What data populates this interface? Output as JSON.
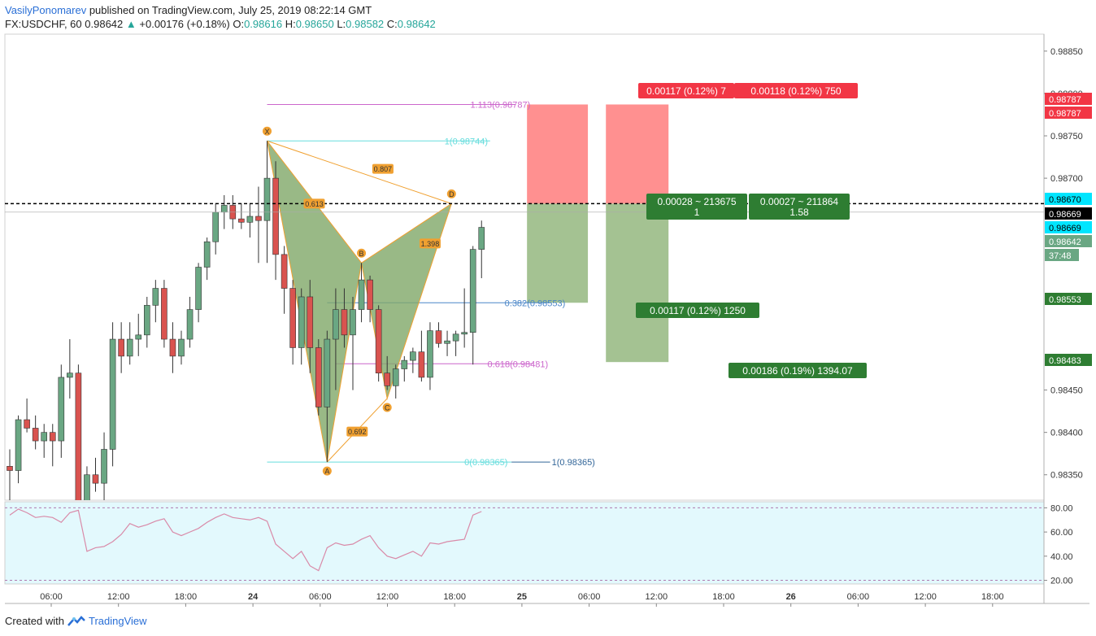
{
  "header": {
    "author": "VasilyPonomarev",
    "published": "published on TradingView.com, July 25, 2019 08:22:14 GMT"
  },
  "symbol_bar": {
    "symbol": "FX:USDCHF, 60",
    "last": "0.98642",
    "change": "+0.00176 (+0.18%)",
    "o_label": "O:",
    "o": "0.98616",
    "h_label": "H:",
    "h": "0.98650",
    "l_label": "L:",
    "l": "0.98582",
    "c_label": "C:",
    "c": "0.98642"
  },
  "footer": {
    "created_with": "Created with",
    "brand": "TradingView"
  },
  "colors": {
    "up": "#6aa783",
    "down": "#d9534f",
    "pattern_fill": "#7fa868",
    "pattern_line": "#f0a030",
    "rsi_bg": "#e3f9fd",
    "rsi_line": "#d98aa8",
    "stop_zone": "#ff8a8a",
    "target_zone": "#9fbf8c"
  },
  "chart_data": {
    "type": "candlestick",
    "ylim": [
      0.9832,
      0.9887
    ],
    "y_ticks": [
      "0.98850",
      "0.98800",
      "0.98750",
      "0.98700",
      "0.98450",
      "0.98400",
      "0.98350"
    ],
    "x_ticks": [
      "06:00",
      "12:00",
      "18:00",
      "24",
      "06:00",
      "12:00",
      "18:00",
      "25",
      "06:00",
      "12:00",
      "18:00",
      "26",
      "06:00",
      "12:00",
      "18:00"
    ],
    "candles": [
      [
        0.9836,
        0.9838,
        0.983,
        0.98355
      ],
      [
        0.98355,
        0.9842,
        0.9834,
        0.98415
      ],
      [
        0.98415,
        0.9844,
        0.984,
        0.98405
      ],
      [
        0.98405,
        0.9842,
        0.9838,
        0.9839
      ],
      [
        0.9839,
        0.9841,
        0.9837,
        0.984
      ],
      [
        0.984,
        0.9841,
        0.9836,
        0.9839
      ],
      [
        0.9839,
        0.9848,
        0.9837,
        0.98465
      ],
      [
        0.98465,
        0.9851,
        0.9844,
        0.9847
      ],
      [
        0.9847,
        0.9848,
        0.982,
        0.9821
      ],
      [
        0.9821,
        0.9836,
        0.9818,
        0.9835
      ],
      [
        0.9835,
        0.9837,
        0.9833,
        0.9834
      ],
      [
        0.9834,
        0.984,
        0.9832,
        0.9838
      ],
      [
        0.9838,
        0.9853,
        0.9836,
        0.9851
      ],
      [
        0.9851,
        0.9853,
        0.9847,
        0.9849
      ],
      [
        0.9849,
        0.9853,
        0.9848,
        0.9851
      ],
      [
        0.9851,
        0.9854,
        0.9849,
        0.98515
      ],
      [
        0.98515,
        0.9856,
        0.985,
        0.9855
      ],
      [
        0.9855,
        0.9858,
        0.9853,
        0.9857
      ],
      [
        0.9857,
        0.9858,
        0.985,
        0.9851
      ],
      [
        0.9851,
        0.9853,
        0.9847,
        0.9849
      ],
      [
        0.9849,
        0.9852,
        0.9848,
        0.9851
      ],
      [
        0.9851,
        0.9856,
        0.985,
        0.98545
      ],
      [
        0.98545,
        0.986,
        0.9853,
        0.98595
      ],
      [
        0.98595,
        0.9863,
        0.9858,
        0.98625
      ],
      [
        0.98625,
        0.9867,
        0.9861,
        0.9866
      ],
      [
        0.9866,
        0.9868,
        0.9864,
        0.98668
      ],
      [
        0.98668,
        0.9868,
        0.9864,
        0.98652
      ],
      [
        0.98652,
        0.9867,
        0.9864,
        0.98648
      ],
      [
        0.98648,
        0.9867,
        0.9863,
        0.98655
      ],
      [
        0.98655,
        0.9869,
        0.986,
        0.9865
      ],
      [
        0.9865,
        0.98744,
        0.986,
        0.987
      ],
      [
        0.987,
        0.9872,
        0.9858,
        0.9861
      ],
      [
        0.9861,
        0.9862,
        0.9854,
        0.9857
      ],
      [
        0.9857,
        0.9858,
        0.9848,
        0.985
      ],
      [
        0.985,
        0.9857,
        0.9848,
        0.9856
      ],
      [
        0.9856,
        0.9858,
        0.9847,
        0.985
      ],
      [
        0.985,
        0.9851,
        0.9842,
        0.9843
      ],
      [
        0.9843,
        0.9852,
        0.98365,
        0.9851
      ],
      [
        0.9851,
        0.9857,
        0.9845,
        0.98545
      ],
      [
        0.98545,
        0.9857,
        0.985,
        0.98515
      ],
      [
        0.98515,
        0.9856,
        0.9845,
        0.98545
      ],
      [
        0.98545,
        0.986,
        0.9853,
        0.9858
      ],
      [
        0.9858,
        0.98585,
        0.9853,
        0.98545
      ],
      [
        0.98545,
        0.9855,
        0.9846,
        0.9847
      ],
      [
        0.9847,
        0.9849,
        0.9845,
        0.98455
      ],
      [
        0.98455,
        0.9848,
        0.9844,
        0.98475
      ],
      [
        0.98475,
        0.9849,
        0.9846,
        0.98485
      ],
      [
        0.98485,
        0.985,
        0.9847,
        0.98495
      ],
      [
        0.98495,
        0.9852,
        0.9846,
        0.98465
      ],
      [
        0.98465,
        0.9853,
        0.9845,
        0.9852
      ],
      [
        0.9852,
        0.9853,
        0.985,
        0.98505
      ],
      [
        0.98505,
        0.9852,
        0.9849,
        0.98508
      ],
      [
        0.98508,
        0.9852,
        0.9849,
        0.98516
      ],
      [
        0.98516,
        0.9857,
        0.985,
        0.98518
      ],
      [
        0.98518,
        0.9862,
        0.9848,
        0.98616
      ],
      [
        0.98616,
        0.9865,
        0.98582,
        0.98642
      ]
    ],
    "pattern": {
      "points": [
        {
          "label": "X",
          "index": 30,
          "price": 0.98744
        },
        {
          "label": "A",
          "index": 37,
          "price": 0.98365
        },
        {
          "label": "B",
          "index": 41,
          "price": 0.986
        },
        {
          "label": "C",
          "index": 44,
          "price": 0.9844
        },
        {
          "label": "D",
          "index": 51.5,
          "price": 0.9867
        }
      ],
      "ratios": [
        {
          "text": "0.613",
          "index": 35.5,
          "price": 0.9867
        },
        {
          "text": "0.807",
          "index": 43.5,
          "price": 0.98711
        },
        {
          "text": "1.398",
          "index": 49,
          "price": 0.98623
        },
        {
          "text": "0.692",
          "index": 40.5,
          "price": 0.98401
        }
      ]
    },
    "levels": [
      {
        "label": "1.113(0.98787)",
        "price": 0.98787,
        "color": "#cc66cc",
        "from": 30,
        "to": 59
      },
      {
        "label": "1(0.98744)",
        "price": 0.98744,
        "color": "#66dddd",
        "from": 30,
        "to": 56
      },
      {
        "label": "0.382(0.98553)",
        "price": 0.98553,
        "color": "#4a86c8",
        "from": 37,
        "to": 63
      },
      {
        "label": "0.618(0.98481)",
        "price": 0.98481,
        "color": "#cc66cc",
        "from": 38,
        "to": 61
      },
      {
        "label": "0(0.98365)",
        "price": 0.98365,
        "color": "#66dddd",
        "from": 30,
        "to": 58.5
      },
      {
        "label": "1(0.98365)",
        "price": 0.98365,
        "color": "#336699",
        "from": 58.5,
        "to": 63
      }
    ],
    "positions": [
      {
        "entry": 0.9867,
        "stop": 0.98787,
        "target": 0.98553,
        "from": 60.3,
        "to": 67.4,
        "stop_text": "0.00117 (0.12%) 7",
        "entry_text": "0.00028 ~ 213675",
        "ratio_text": "1",
        "target_text": "0.00117 (0.12%) 1250"
      },
      {
        "entry": 0.9867,
        "stop": 0.98787,
        "target": 0.98483,
        "from": 69.5,
        "to": 76.8,
        "stop_text": "0.00118 (0.12%) 750",
        "entry_text": "0.00027 ~ 211864",
        "ratio_text": "1.58",
        "target_text": "0.00186 (0.19%) 1394.07"
      }
    ],
    "price_tags": [
      {
        "text": "0.98787",
        "bg": "#f23645",
        "fg": "#ffffff"
      },
      {
        "text": "0.98787",
        "bg": "#f23645",
        "fg": "#ffffff"
      },
      {
        "text": "0.98670",
        "bg": "#00e5ff",
        "fg": "#000000"
      },
      {
        "text": "0.98669",
        "bg": "#000000",
        "fg": "#ffffff"
      },
      {
        "text": "0.98669",
        "bg": "#00e5ff",
        "fg": "#000000"
      },
      {
        "text": "0.98642",
        "bg": "#6aa783",
        "fg": "#ffffff"
      },
      {
        "text": "37:48",
        "bg": "#6aa783",
        "fg": "#ffffff"
      },
      {
        "text": "0.98553",
        "bg": "#2e7d32",
        "fg": "#ffffff"
      },
      {
        "text": "0.98483",
        "bg": "#2e7d32",
        "fg": "#ffffff"
      }
    ],
    "rsi": {
      "ylim": [
        17,
        85
      ],
      "ticks": [
        "80.00",
        "60.00",
        "40.00",
        "20.00"
      ],
      "levels": [
        80,
        20
      ],
      "values": [
        74,
        79,
        76,
        72,
        73,
        72,
        68,
        76,
        78,
        44,
        47,
        48,
        52,
        58,
        67,
        64,
        66,
        69,
        71,
        60,
        57,
        60,
        63,
        68,
        72,
        75,
        72,
        71,
        70,
        72,
        69,
        50,
        44,
        38,
        44,
        32,
        28,
        47,
        51,
        49,
        50,
        54,
        57,
        47,
        40,
        38,
        41,
        44,
        40,
        51,
        50,
        52,
        53,
        54,
        74,
        77
      ]
    }
  }
}
